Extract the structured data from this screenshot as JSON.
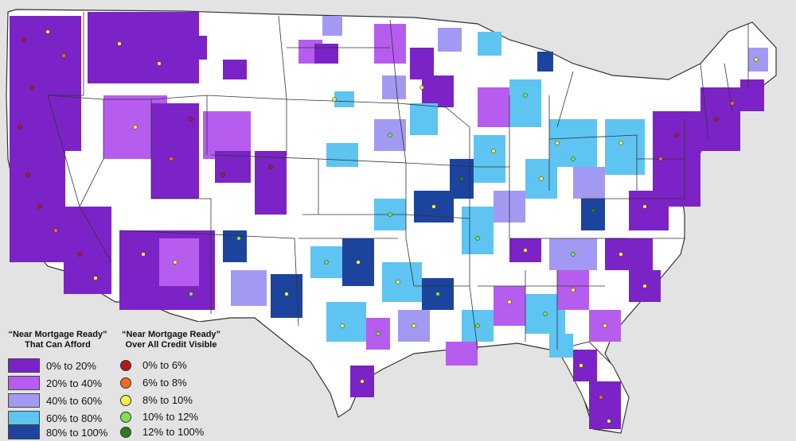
{
  "legend_fill": {
    "title_line1": "“Near Mortgage Ready”",
    "title_line2": "That Can Afford",
    "items": [
      {
        "label": "0% to 20%",
        "color": "#7b23c6"
      },
      {
        "label": "20% to 40%",
        "color": "#b65df0"
      },
      {
        "label": "40% to 60%",
        "color": "#a29af2"
      },
      {
        "label": "60% to 80%",
        "color": "#5ec4f2"
      },
      {
        "label": "80% to 100%",
        "color": "#1c449e"
      }
    ]
  },
  "legend_dot": {
    "title_line1": "“Near Mortgage Ready”",
    "title_line2": "Over All Credit Visible",
    "items": [
      {
        "label": "0% to 6%",
        "color": "#b3191b"
      },
      {
        "label": "6% to 8%",
        "color": "#f26a21"
      },
      {
        "label": "8% to 10%",
        "color": "#f3f04d"
      },
      {
        "label": "10% to 12%",
        "color": "#7be24e"
      },
      {
        "label": "12% to 100%",
        "color": "#2f7a25"
      }
    ]
  }
}
